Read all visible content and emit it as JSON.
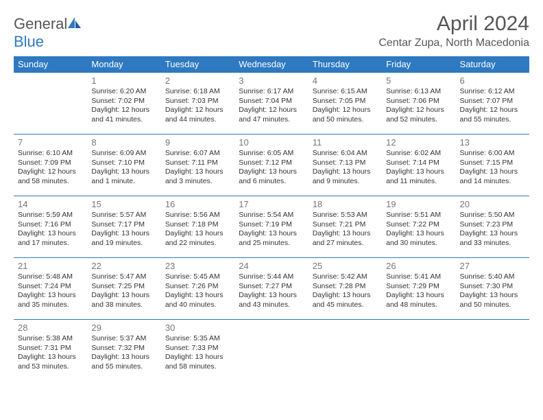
{
  "logo": {
    "text1": "General",
    "text2": "Blue"
  },
  "title": "April 2024",
  "location": "Centar Zupa, North Macedonia",
  "colors": {
    "header_bg": "#2e79c0",
    "header_text": "#ffffff",
    "border": "#2e79c0",
    "daynum": "#777777",
    "body_text": "#333333",
    "title_text": "#555555"
  },
  "dow": [
    "Sunday",
    "Monday",
    "Tuesday",
    "Wednesday",
    "Thursday",
    "Friday",
    "Saturday"
  ],
  "weeks": [
    [
      {
        "num": "",
        "lines": []
      },
      {
        "num": "1",
        "lines": [
          "Sunrise: 6:20 AM",
          "Sunset: 7:02 PM",
          "Daylight: 12 hours and 41 minutes."
        ]
      },
      {
        "num": "2",
        "lines": [
          "Sunrise: 6:18 AM",
          "Sunset: 7:03 PM",
          "Daylight: 12 hours and 44 minutes."
        ]
      },
      {
        "num": "3",
        "lines": [
          "Sunrise: 6:17 AM",
          "Sunset: 7:04 PM",
          "Daylight: 12 hours and 47 minutes."
        ]
      },
      {
        "num": "4",
        "lines": [
          "Sunrise: 6:15 AM",
          "Sunset: 7:05 PM",
          "Daylight: 12 hours and 50 minutes."
        ]
      },
      {
        "num": "5",
        "lines": [
          "Sunrise: 6:13 AM",
          "Sunset: 7:06 PM",
          "Daylight: 12 hours and 52 minutes."
        ]
      },
      {
        "num": "6",
        "lines": [
          "Sunrise: 6:12 AM",
          "Sunset: 7:07 PM",
          "Daylight: 12 hours and 55 minutes."
        ]
      }
    ],
    [
      {
        "num": "7",
        "lines": [
          "Sunrise: 6:10 AM",
          "Sunset: 7:09 PM",
          "Daylight: 12 hours and 58 minutes."
        ]
      },
      {
        "num": "8",
        "lines": [
          "Sunrise: 6:09 AM",
          "Sunset: 7:10 PM",
          "Daylight: 13 hours and 1 minute."
        ]
      },
      {
        "num": "9",
        "lines": [
          "Sunrise: 6:07 AM",
          "Sunset: 7:11 PM",
          "Daylight: 13 hours and 3 minutes."
        ]
      },
      {
        "num": "10",
        "lines": [
          "Sunrise: 6:05 AM",
          "Sunset: 7:12 PM",
          "Daylight: 13 hours and 6 minutes."
        ]
      },
      {
        "num": "11",
        "lines": [
          "Sunrise: 6:04 AM",
          "Sunset: 7:13 PM",
          "Daylight: 13 hours and 9 minutes."
        ]
      },
      {
        "num": "12",
        "lines": [
          "Sunrise: 6:02 AM",
          "Sunset: 7:14 PM",
          "Daylight: 13 hours and 11 minutes."
        ]
      },
      {
        "num": "13",
        "lines": [
          "Sunrise: 6:00 AM",
          "Sunset: 7:15 PM",
          "Daylight: 13 hours and 14 minutes."
        ]
      }
    ],
    [
      {
        "num": "14",
        "lines": [
          "Sunrise: 5:59 AM",
          "Sunset: 7:16 PM",
          "Daylight: 13 hours and 17 minutes."
        ]
      },
      {
        "num": "15",
        "lines": [
          "Sunrise: 5:57 AM",
          "Sunset: 7:17 PM",
          "Daylight: 13 hours and 19 minutes."
        ]
      },
      {
        "num": "16",
        "lines": [
          "Sunrise: 5:56 AM",
          "Sunset: 7:18 PM",
          "Daylight: 13 hours and 22 minutes."
        ]
      },
      {
        "num": "17",
        "lines": [
          "Sunrise: 5:54 AM",
          "Sunset: 7:19 PM",
          "Daylight: 13 hours and 25 minutes."
        ]
      },
      {
        "num": "18",
        "lines": [
          "Sunrise: 5:53 AM",
          "Sunset: 7:21 PM",
          "Daylight: 13 hours and 27 minutes."
        ]
      },
      {
        "num": "19",
        "lines": [
          "Sunrise: 5:51 AM",
          "Sunset: 7:22 PM",
          "Daylight: 13 hours and 30 minutes."
        ]
      },
      {
        "num": "20",
        "lines": [
          "Sunrise: 5:50 AM",
          "Sunset: 7:23 PM",
          "Daylight: 13 hours and 33 minutes."
        ]
      }
    ],
    [
      {
        "num": "21",
        "lines": [
          "Sunrise: 5:48 AM",
          "Sunset: 7:24 PM",
          "Daylight: 13 hours and 35 minutes."
        ]
      },
      {
        "num": "22",
        "lines": [
          "Sunrise: 5:47 AM",
          "Sunset: 7:25 PM",
          "Daylight: 13 hours and 38 minutes."
        ]
      },
      {
        "num": "23",
        "lines": [
          "Sunrise: 5:45 AM",
          "Sunset: 7:26 PM",
          "Daylight: 13 hours and 40 minutes."
        ]
      },
      {
        "num": "24",
        "lines": [
          "Sunrise: 5:44 AM",
          "Sunset: 7:27 PM",
          "Daylight: 13 hours and 43 minutes."
        ]
      },
      {
        "num": "25",
        "lines": [
          "Sunrise: 5:42 AM",
          "Sunset: 7:28 PM",
          "Daylight: 13 hours and 45 minutes."
        ]
      },
      {
        "num": "26",
        "lines": [
          "Sunrise: 5:41 AM",
          "Sunset: 7:29 PM",
          "Daylight: 13 hours and 48 minutes."
        ]
      },
      {
        "num": "27",
        "lines": [
          "Sunrise: 5:40 AM",
          "Sunset: 7:30 PM",
          "Daylight: 13 hours and 50 minutes."
        ]
      }
    ],
    [
      {
        "num": "28",
        "lines": [
          "Sunrise: 5:38 AM",
          "Sunset: 7:31 PM",
          "Daylight: 13 hours and 53 minutes."
        ]
      },
      {
        "num": "29",
        "lines": [
          "Sunrise: 5:37 AM",
          "Sunset: 7:32 PM",
          "Daylight: 13 hours and 55 minutes."
        ]
      },
      {
        "num": "30",
        "lines": [
          "Sunrise: 5:35 AM",
          "Sunset: 7:33 PM",
          "Daylight: 13 hours and 58 minutes."
        ]
      },
      {
        "num": "",
        "lines": []
      },
      {
        "num": "",
        "lines": []
      },
      {
        "num": "",
        "lines": []
      },
      {
        "num": "",
        "lines": []
      }
    ]
  ]
}
